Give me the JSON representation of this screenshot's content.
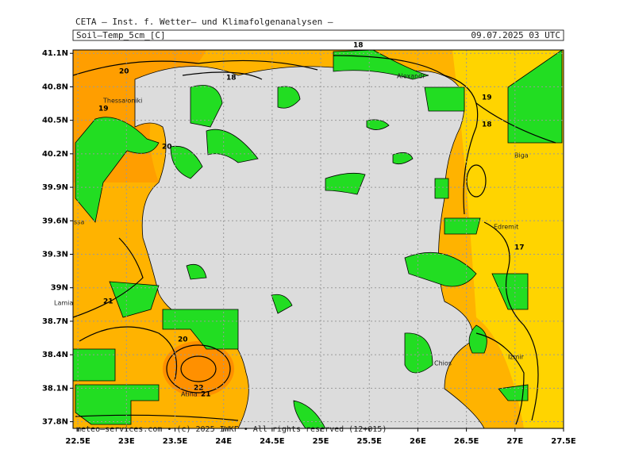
{
  "header": {
    "institute": "CETA – Inst. f. Wetter– und Klimafolgenanalysen –",
    "parameter": "Soil–Temp_5cm_[C]",
    "valid_time": "09.07.2025 03 UTC"
  },
  "footer": "meteo–services.com • (c) 2025 IWKF • All rights reserved (12+015)",
  "map": {
    "xlim": [
      22.45,
      27.5
    ],
    "ylim": [
      37.74,
      41.13
    ],
    "xticks": [
      {
        "value": 22.5,
        "label": "22.5E"
      },
      {
        "value": 23,
        "label": "23E"
      },
      {
        "value": 23.5,
        "label": "23.5E"
      },
      {
        "value": 24,
        "label": "24E"
      },
      {
        "value": 24.5,
        "label": "24.5E"
      },
      {
        "value": 25,
        "label": "25E"
      },
      {
        "value": 25.5,
        "label": "25.5E"
      },
      {
        "value": 26,
        "label": "26E"
      },
      {
        "value": 26.5,
        "label": "26.5E"
      },
      {
        "value": 27,
        "label": "27E"
      },
      {
        "value": 27.5,
        "label": "27.5E"
      }
    ],
    "yticks": [
      {
        "value": 41.1,
        "label": "41.1N"
      },
      {
        "value": 40.8,
        "label": "40.8N"
      },
      {
        "value": 40.5,
        "label": "40.5N"
      },
      {
        "value": 40.2,
        "label": "40.2N"
      },
      {
        "value": 39.9,
        "label": "39.9N"
      },
      {
        "value": 39.6,
        "label": "39.6N"
      },
      {
        "value": 39.3,
        "label": "39.3N"
      },
      {
        "value": 39,
        "label": "39N"
      },
      {
        "value": 38.7,
        "label": "38.7N"
      },
      {
        "value": 38.4,
        "label": "38.4N"
      },
      {
        "value": 38.1,
        "label": "38.1N"
      },
      {
        "value": 37.8,
        "label": "37.8N"
      }
    ],
    "places": [
      "Thessaloniki",
      "Alexandr",
      "Biga",
      "Edremit",
      "ssa",
      "Lamia",
      "Chios",
      "Izmir",
      "Atina"
    ],
    "contour_labels": [
      "20",
      "18",
      "18",
      "19",
      "19",
      "18",
      "20",
      "17",
      "21",
      "20",
      "22",
      "21"
    ]
  }
}
